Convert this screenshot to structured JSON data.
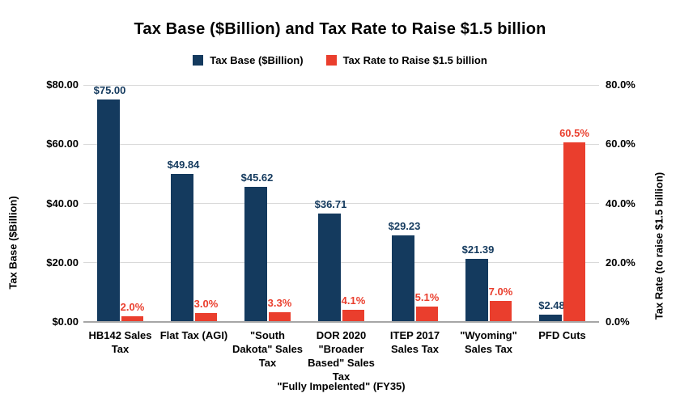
{
  "chart_data": {
    "type": "bar",
    "title": "Tax Base ($Billion) and Tax Rate to Raise $1.5 billion",
    "categories": [
      "HB142 Sales Tax",
      "Flat Tax (AGI)",
      "\"South Dakota\" Sales Tax",
      "DOR 2020 \"Broader Based\" Sales Tax",
      "ITEP 2017 Sales Tax",
      "\"Wyoming\" Sales Tax",
      "PFD Cuts"
    ],
    "category_label_lines": [
      [
        "HB142 Sales",
        "Tax"
      ],
      [
        "Flat Tax (AGI)"
      ],
      [
        "\"South",
        "Dakota\" Sales",
        "Tax"
      ],
      [
        "DOR 2020",
        "\"Broader",
        "Based\" Sales",
        "Tax"
      ],
      [
        "ITEP 2017",
        "Sales Tax"
      ],
      [
        "\"Wyoming\"",
        "Sales Tax"
      ],
      [
        "PFD Cuts"
      ]
    ],
    "series": [
      {
        "name": "Tax Base ($Billion)",
        "axis": "left",
        "color": "#143A5E",
        "values": [
          75.0,
          49.84,
          45.62,
          36.71,
          29.23,
          21.39,
          2.48
        ],
        "labels": [
          "$75.00",
          "$49.84",
          "$45.62",
          "$36.71",
          "$29.23",
          "$21.39",
          "$2.48"
        ]
      },
      {
        "name": "Tax Rate to Raise $1.5 billion",
        "axis": "right",
        "color": "#EA3E2D",
        "values": [
          2.0,
          3.0,
          3.3,
          4.1,
          5.1,
          7.0,
          60.5
        ],
        "labels": [
          "2.0%",
          "3.0%",
          "3.3%",
          "4.1%",
          "5.1%",
          "7.0%",
          "60.5%"
        ]
      }
    ],
    "left_axis": {
      "title": "Tax Base ($Billion)",
      "range": [
        0,
        80
      ],
      "tick_values": [
        0,
        20,
        40,
        60,
        80
      ],
      "tick_labels": [
        "$0.00",
        "$20.00",
        "$40.00",
        "$60.00",
        "$80.00"
      ]
    },
    "right_axis": {
      "title": "Tax Rate (to raise $1.5 billion)",
      "range": [
        0,
        80
      ],
      "tick_values": [
        0,
        20,
        40,
        60,
        80
      ],
      "tick_labels": [
        "0.0%",
        "20.0%",
        "40.0%",
        "60.0%",
        "80.0%"
      ]
    },
    "x_axis": {
      "title": "\"Fully Impelented\" (FY35)"
    },
    "legend": {
      "position": "top",
      "entries": [
        "Tax Base ($Billion)",
        "Tax Rate to Raise $1.5 billion"
      ]
    },
    "grid": true
  },
  "colors": {
    "background": "#FFFFFF",
    "gridline": "#D9D9D9",
    "baseline": "#A6A6A6",
    "text": "#000000",
    "tax_base": "#143A5E",
    "tax_rate": "#EA3E2D"
  }
}
